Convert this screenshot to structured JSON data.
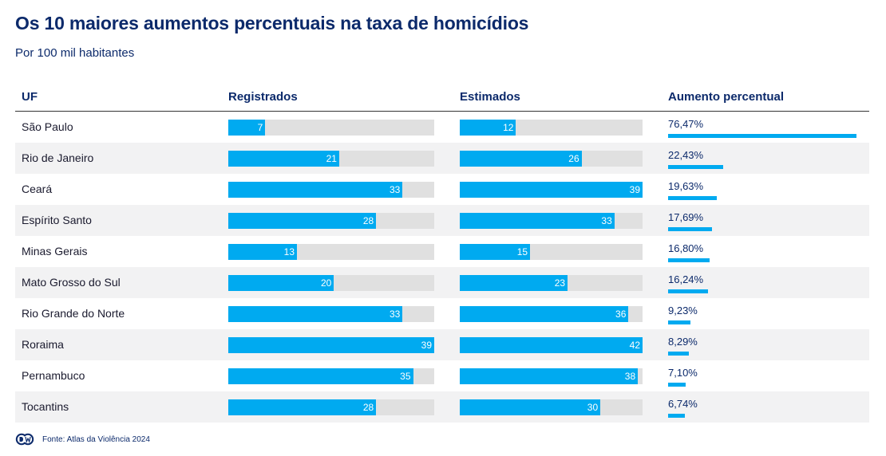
{
  "title": "Os 10 maiores aumentos percentuais na taxa de homicídios",
  "subtitle": "Por 100 mil habitantes",
  "headers": {
    "uf": "UF",
    "registrados": "Registrados",
    "estimados": "Estimados",
    "aumento": "Aumento percentual"
  },
  "source": "Fonte: Atlas da Violência 2024",
  "colors": {
    "bar": "#00aaf0",
    "track": "#e0e0e0",
    "title": "#0c2a6b",
    "row_alt": "#f2f2f3"
  },
  "chart_data": {
    "type": "table",
    "scale_max": 39,
    "pct_scale_max": 76.47,
    "rows": [
      {
        "uf": "São Paulo",
        "registrados": 7,
        "estimados": 12,
        "aumento": 76.47,
        "aumento_label": "76,47%"
      },
      {
        "uf": "Rio de Janeiro",
        "registrados": 21,
        "estimados": 26,
        "aumento": 22.43,
        "aumento_label": "22,43%"
      },
      {
        "uf": "Ceará",
        "registrados": 33,
        "estimados": 39,
        "aumento": 19.63,
        "aumento_label": "19,63%"
      },
      {
        "uf": "Espírito Santo",
        "registrados": 28,
        "estimados": 33,
        "aumento": 17.69,
        "aumento_label": "17,69%"
      },
      {
        "uf": "Minas Gerais",
        "registrados": 13,
        "estimados": 15,
        "aumento": 16.8,
        "aumento_label": "16,80%"
      },
      {
        "uf": "Mato Grosso do Sul",
        "registrados": 20,
        "estimados": 23,
        "aumento": 16.24,
        "aumento_label": "16,24%"
      },
      {
        "uf": "Rio Grande do Norte",
        "registrados": 33,
        "estimados": 36,
        "aumento": 9.23,
        "aumento_label": "9,23%"
      },
      {
        "uf": "Roraima",
        "registrados": 39,
        "estimados": 42,
        "aumento": 8.29,
        "aumento_label": "8,29%"
      },
      {
        "uf": "Pernambuco",
        "registrados": 35,
        "estimados": 38,
        "aumento": 7.1,
        "aumento_label": "7,10%"
      },
      {
        "uf": "Tocantins",
        "registrados": 28,
        "estimados": 30,
        "aumento": 6.74,
        "aumento_label": "6,74%"
      }
    ]
  }
}
